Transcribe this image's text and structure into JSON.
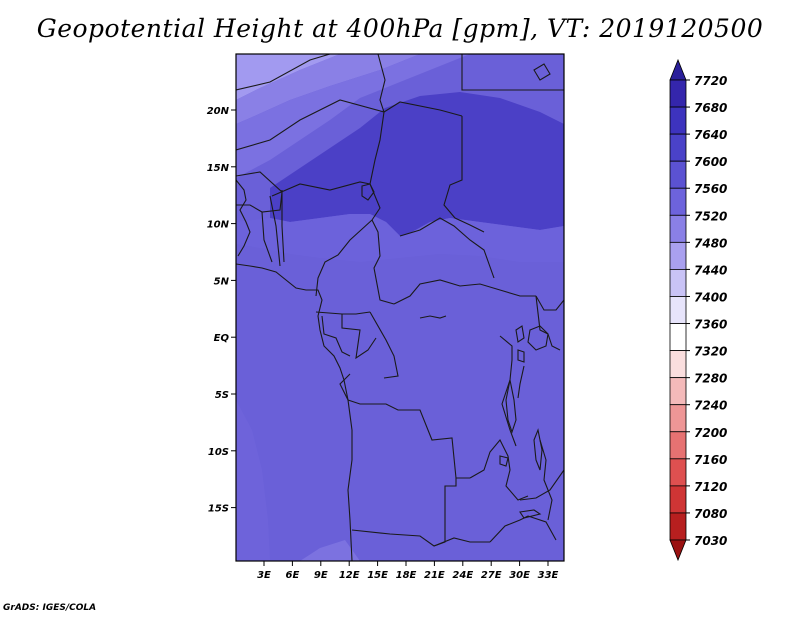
{
  "title": "Geopotential Height at 400hPa [gpm], VT: 2019120500",
  "credit": "GrADS: IGES/COLA",
  "map": {
    "lon_ticks": [
      "3E",
      "6E",
      "9E",
      "12E",
      "15E",
      "18E",
      "21E",
      "24E",
      "27E",
      "30E",
      "33E"
    ],
    "lat_ticks": [
      "20N",
      "15N",
      "10N",
      "5N",
      "EQ",
      "5S",
      "10S",
      "15S"
    ]
  },
  "colorbar": {
    "levels": [
      "7720",
      "7680",
      "7640",
      "7600",
      "7560",
      "7520",
      "7480",
      "7440",
      "7400",
      "7360",
      "7320",
      "7280",
      "7240",
      "7200",
      "7160",
      "7120",
      "7080",
      "7030"
    ],
    "colors": [
      "#2a1f9a",
      "#3426ac",
      "#3d33be",
      "#4a42c8",
      "#5b52d2",
      "#6d63dc",
      "#8a80e6",
      "#a9a0ef",
      "#c9c3f6",
      "#e7e4fb",
      "#ffffff",
      "#fadede",
      "#f4baba",
      "#ee9696",
      "#e67272",
      "#de5050",
      "#cf3535",
      "#b71f1f",
      "#9a1212"
    ]
  },
  "colors": {
    "field_main": "#6a60d8",
    "field_high": "#4b40c6",
    "field_mid": "#7a70e0",
    "field_low": "#9a90ec",
    "border": "#1a1a1a"
  }
}
